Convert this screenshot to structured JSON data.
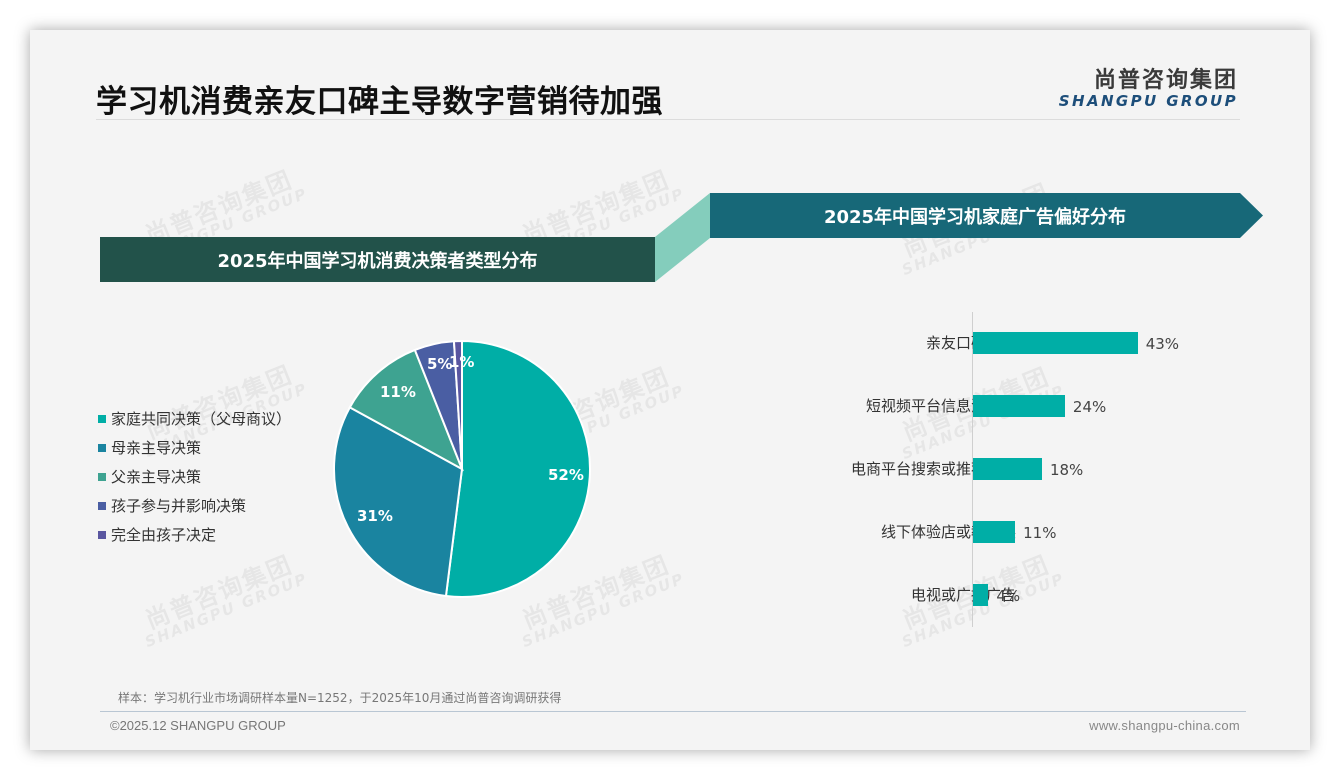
{
  "header": {
    "title": "学习机消费亲友口碑主导数字营销待加强",
    "logo_cn": "尚普咨询集团",
    "logo_en": "SHANGPU GROUP"
  },
  "watermark": {
    "cn": "尚普咨询集团",
    "en": "SHANGPU GROUP"
  },
  "left_panel": {
    "banner": "2025年中国学习机消费决策者类型分布",
    "legend": [
      {
        "label": "家庭共同决策（父母商议）",
        "color": "#00aea6"
      },
      {
        "label": "母亲主导决策",
        "color": "#1a84a0"
      },
      {
        "label": "父亲主导决策",
        "color": "#3ea391"
      },
      {
        "label": "孩子参与并影响决策",
        "color": "#4a5ea3"
      },
      {
        "label": "完全由孩子决定",
        "color": "#5a56a0"
      }
    ],
    "labels": [
      "52%",
      "31%",
      "11%",
      "5%",
      "1%"
    ]
  },
  "right_panel": {
    "banner": "2025年中国学习机家庭广告偏好分布",
    "bars": [
      {
        "label": "亲友口碑推荐",
        "value": 43,
        "display": "43%"
      },
      {
        "label": "短视频平台信息流广告",
        "value": 24,
        "display": "24%"
      },
      {
        "label": "电商平台搜索或推荐广告",
        "value": 18,
        "display": "18%"
      },
      {
        "label": "线下体验店或教育展",
        "value": 11,
        "display": "11%"
      },
      {
        "label": "电视或广播广告",
        "value": 4,
        "display": "4%"
      }
    ]
  },
  "colors": {
    "banner_left": "#22524a",
    "banner_right": "#176878",
    "connector": "#84cdbc",
    "bar": "#00aea6"
  },
  "footer": {
    "note": "样本：学习机行业市场调研样本量N=1252，于2025年10月通过尚普咨询调研获得",
    "copyright": "©2025.12 SHANGPU GROUP",
    "website": "www.shangpu-china.com"
  },
  "chart_data": [
    {
      "type": "pie",
      "title": "2025年中国学习机消费决策者类型分布",
      "categories": [
        "家庭共同决策（父母商议）",
        "母亲主导决策",
        "父亲主导决策",
        "孩子参与并影响决策",
        "完全由孩子决定"
      ],
      "values": [
        52,
        31,
        11,
        5,
        1
      ],
      "unit": "%",
      "colors": [
        "#00aea6",
        "#1a84a0",
        "#3ea391",
        "#4a5ea3",
        "#5a56a0"
      ],
      "legend_position": "left"
    },
    {
      "type": "bar",
      "orientation": "horizontal",
      "title": "2025年中国学习机家庭广告偏好分布",
      "categories": [
        "亲友口碑推荐",
        "短视频平台信息流广告",
        "电商平台搜索或推荐广告",
        "线下体验店或教育展",
        "电视或广播广告"
      ],
      "values": [
        43,
        24,
        18,
        11,
        4
      ],
      "unit": "%",
      "xlabel": "",
      "ylabel": "",
      "grid": false,
      "color": "#00aea6"
    }
  ]
}
